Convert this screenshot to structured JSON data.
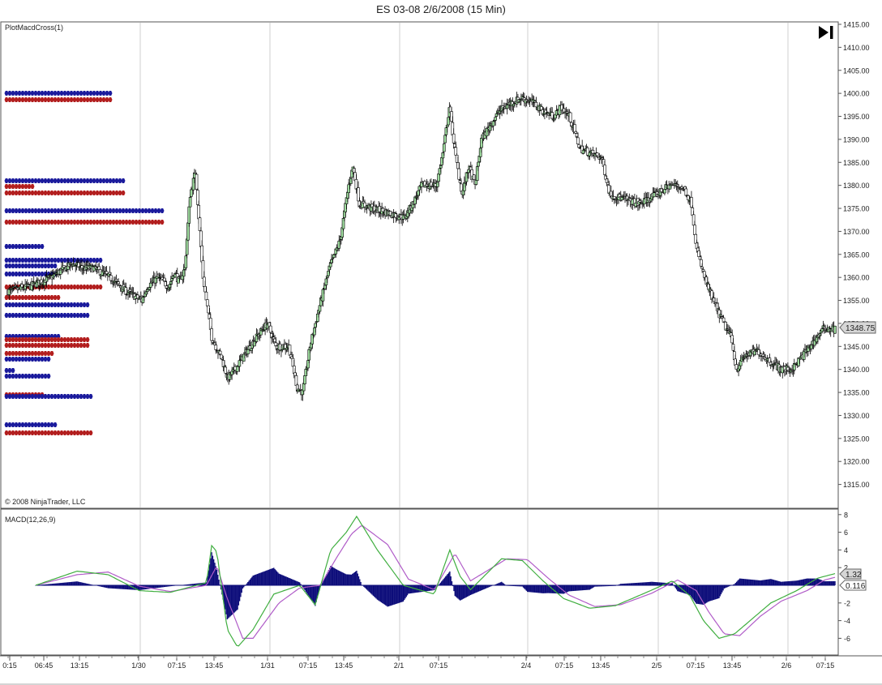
{
  "title": "ES 03-08  2/6/2008 (15 Min)",
  "indicator_label": "PlotMacdCross(1)",
  "copyright": "© 2008 NinjaTrader, LLC",
  "macd_label": "MACD(12,26,9)",
  "last_price_label": "1348.75",
  "macd_value_label": "1.32",
  "macd_hist_label": "0.116",
  "nav_icon": "skip-to-end-icon",
  "colors": {
    "up_candle": "#9fdc9f",
    "down_candle": "#ffffff",
    "wick": "#000000",
    "blue_marker": "#1a1a9c",
    "red_marker": "#b21d1d",
    "histogram": "#0d0d7a",
    "macd_line": "#3fae3f",
    "signal_line": "#b05cc8",
    "gridline": "#cfcfcf"
  },
  "chart_data": [
    {
      "type": "candlestick",
      "title": "ES 03-08  2/6/2008 (15 Min)",
      "y_ticks": [
        "1415.00",
        "1410.00",
        "1405.00",
        "1400.00",
        "1395.00",
        "1390.00",
        "1385.00",
        "1380.00",
        "1375.00",
        "1370.00",
        "1365.00",
        "1360.00",
        "1355.00",
        "1350.00",
        "1345.00",
        "1340.00",
        "1335.00",
        "1330.00",
        "1325.00",
        "1320.00",
        "1315.00"
      ],
      "ylim": [
        1311,
        1416
      ],
      "x_ticks": [
        "0:15",
        "06:45",
        "13:15",
        "1/30",
        "07:15",
        "13:45",
        "1/31",
        "07:15",
        "13:45",
        "2/1",
        "07:15",
        "2/4",
        "07:15",
        "13:45",
        "2/5",
        "07:15",
        "13:45",
        "2/6",
        "07:15"
      ],
      "close_path": [
        [
          0,
          1357
        ],
        [
          20,
          1358
        ],
        [
          40,
          1360
        ],
        [
          60,
          1363
        ],
        [
          70,
          1362
        ],
        [
          80,
          1362
        ],
        [
          95,
          1360
        ],
        [
          110,
          1357
        ],
        [
          125,
          1355
        ],
        [
          130,
          1358
        ],
        [
          140,
          1360
        ],
        [
          150,
          1358
        ],
        [
          155,
          1361
        ],
        [
          160,
          1359
        ],
        [
          165,
          1362
        ],
        [
          170,
          1378
        ],
        [
          175,
          1383
        ],
        [
          182,
          1360
        ],
        [
          190,
          1347
        ],
        [
          200,
          1342
        ],
        [
          205,
          1338
        ],
        [
          212,
          1340
        ],
        [
          220,
          1343
        ],
        [
          232,
          1347
        ],
        [
          242,
          1350
        ],
        [
          250,
          1345
        ],
        [
          262,
          1345
        ],
        [
          270,
          1336
        ],
        [
          275,
          1335
        ],
        [
          282,
          1345
        ],
        [
          290,
          1353
        ],
        [
          300,
          1362
        ],
        [
          310,
          1368
        ],
        [
          318,
          1380
        ],
        [
          322,
          1384
        ],
        [
          328,
          1376
        ],
        [
          340,
          1375
        ],
        [
          355,
          1374
        ],
        [
          370,
          1373
        ],
        [
          378,
          1376
        ],
        [
          386,
          1380
        ],
        [
          400,
          1380
        ],
        [
          406,
          1387
        ],
        [
          412,
          1397
        ],
        [
          418,
          1386
        ],
        [
          424,
          1378
        ],
        [
          430,
          1384
        ],
        [
          436,
          1380
        ],
        [
          442,
          1390
        ],
        [
          450,
          1393
        ],
        [
          458,
          1396
        ],
        [
          470,
          1398
        ],
        [
          480,
          1399
        ],
        [
          490,
          1398
        ],
        [
          500,
          1396
        ],
        [
          510,
          1395
        ],
        [
          516,
          1397
        ],
        [
          524,
          1395
        ],
        [
          534,
          1388
        ],
        [
          544,
          1387
        ],
        [
          554,
          1386
        ],
        [
          562,
          1378
        ],
        [
          575,
          1377
        ],
        [
          590,
          1376
        ],
        [
          605,
          1378
        ],
        [
          618,
          1380
        ],
        [
          625,
          1380
        ],
        [
          632,
          1379
        ],
        [
          638,
          1376
        ],
        [
          643,
          1366
        ],
        [
          650,
          1360
        ],
        [
          658,
          1355
        ],
        [
          668,
          1350
        ],
        [
          675,
          1347
        ],
        [
          680,
          1340
        ],
        [
          688,
          1343
        ],
        [
          700,
          1344
        ],
        [
          710,
          1342
        ],
        [
          722,
          1340
        ],
        [
          732,
          1340
        ],
        [
          742,
          1343
        ],
        [
          752,
          1346
        ],
        [
          762,
          1349
        ],
        [
          772,
          1348.75
        ]
      ],
      "last_price": 1348.75
    },
    {
      "type": "macd",
      "title": "MACD(12,26,9)",
      "y_ticks": [
        "8",
        "6",
        "4",
        "2",
        "-2",
        "-4",
        "-6"
      ],
      "ylim": [
        -8,
        8.5
      ],
      "macd": [
        [
          0,
          0
        ],
        [
          40,
          1.6
        ],
        [
          70,
          1.2
        ],
        [
          100,
          -0.6
        ],
        [
          130,
          -0.8
        ],
        [
          165,
          0.3
        ],
        [
          170,
          4.5
        ],
        [
          175,
          3.8
        ],
        [
          185,
          -5
        ],
        [
          195,
          -7
        ],
        [
          210,
          -5
        ],
        [
          230,
          -1
        ],
        [
          255,
          0
        ],
        [
          270,
          -2.2
        ],
        [
          285,
          4
        ],
        [
          300,
          6
        ],
        [
          310,
          7.8
        ],
        [
          330,
          4
        ],
        [
          355,
          0
        ],
        [
          385,
          -1
        ],
        [
          400,
          4
        ],
        [
          410,
          1
        ],
        [
          420,
          -0.5
        ],
        [
          450,
          3
        ],
        [
          470,
          2.8
        ],
        [
          490,
          0.5
        ],
        [
          510,
          -1.5
        ],
        [
          535,
          -2.6
        ],
        [
          560,
          -2.3
        ],
        [
          590,
          -0.8
        ],
        [
          615,
          0.5
        ],
        [
          632,
          -1.2
        ],
        [
          645,
          -4
        ],
        [
          660,
          -6
        ],
        [
          675,
          -5.5
        ],
        [
          690,
          -4
        ],
        [
          710,
          -2
        ],
        [
          735,
          -0.6
        ],
        [
          755,
          0.8
        ],
        [
          772,
          1.32
        ]
      ],
      "signal": [
        [
          0,
          0
        ],
        [
          40,
          1.2
        ],
        [
          70,
          1.5
        ],
        [
          100,
          -0.1
        ],
        [
          130,
          -0.7
        ],
        [
          165,
          0
        ],
        [
          175,
          2.2
        ],
        [
          185,
          -1.5
        ],
        [
          200,
          -6
        ],
        [
          210,
          -6
        ],
        [
          235,
          -2
        ],
        [
          255,
          -0.3
        ],
        [
          275,
          0
        ],
        [
          290,
          3
        ],
        [
          305,
          5.8
        ],
        [
          315,
          6.8
        ],
        [
          340,
          4.6
        ],
        [
          360,
          0.7
        ],
        [
          385,
          -0.5
        ],
        [
          405,
          3.6
        ],
        [
          420,
          0.5
        ],
        [
          455,
          3
        ],
        [
          475,
          2.9
        ],
        [
          495,
          0.8
        ],
        [
          515,
          -1.1
        ],
        [
          540,
          -2.4
        ],
        [
          565,
          -2.2
        ],
        [
          595,
          -0.9
        ],
        [
          620,
          0.6
        ],
        [
          638,
          -0.6
        ],
        [
          650,
          -3
        ],
        [
          665,
          -5.5
        ],
        [
          680,
          -5.7
        ],
        [
          700,
          -3.5
        ],
        [
          720,
          -1.8
        ],
        [
          745,
          -0.6
        ],
        [
          762,
          0.6
        ],
        [
          772,
          0.9
        ]
      ],
      "macd_last": 1.32,
      "hist_last": 0.116
    }
  ]
}
